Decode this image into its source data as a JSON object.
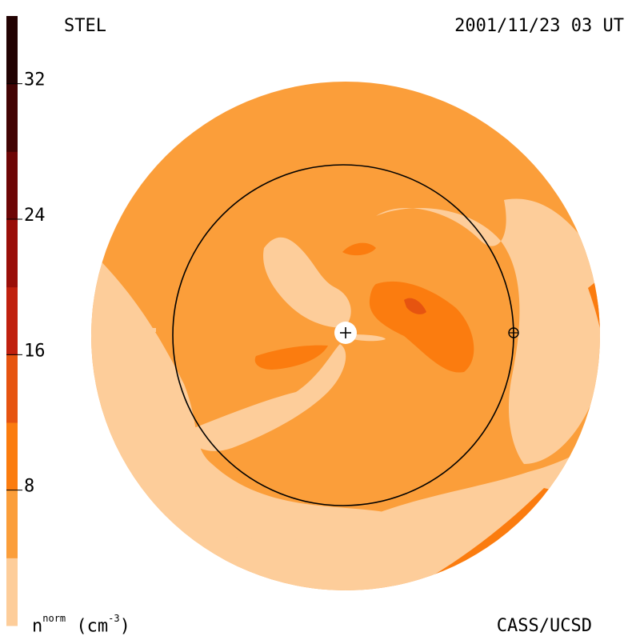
{
  "header": {
    "left_label": "STEL",
    "right_label": "2001/11/23 03 UT"
  },
  "footer": {
    "unit_base": "n",
    "unit_sup": "norm",
    "unit_paren": "(cm",
    "unit_exp": "-3",
    "unit_close": ")",
    "credit": "CASS/UCSD"
  },
  "chart_data": {
    "type": "heatmap",
    "colorbar": {
      "range": [
        0,
        36
      ],
      "bands": [
        {
          "from": 0,
          "to": 4,
          "color": "#FDCD9A"
        },
        {
          "from": 4,
          "to": 8,
          "color": "#FB9E3A"
        },
        {
          "from": 8,
          "to": 12,
          "color": "#FB7C0F"
        },
        {
          "from": 12,
          "to": 16,
          "color": "#E65410"
        },
        {
          "from": 16,
          "to": 20,
          "color": "#C0200E"
        },
        {
          "from": 20,
          "to": 24,
          "color": "#9A0E09"
        },
        {
          "from": 24,
          "to": 28,
          "color": "#6E0606"
        },
        {
          "from": 28,
          "to": 32,
          "color": "#430404"
        },
        {
          "from": 32,
          "to": 36,
          "color": "#220202"
        }
      ],
      "tick_values": [
        8,
        16,
        24,
        32
      ],
      "tick_labels": [
        "8",
        "16",
        "24",
        "32"
      ]
    },
    "field_color": "#FB9E3A",
    "contour_colors": {
      "low": "#FDCD9A",
      "mid": "#FB7C0F",
      "high": "#E65410"
    },
    "markers": [
      {
        "name": "sun",
        "symbol": "+"
      },
      {
        "name": "earth",
        "symbol": "⊕"
      }
    ]
  }
}
